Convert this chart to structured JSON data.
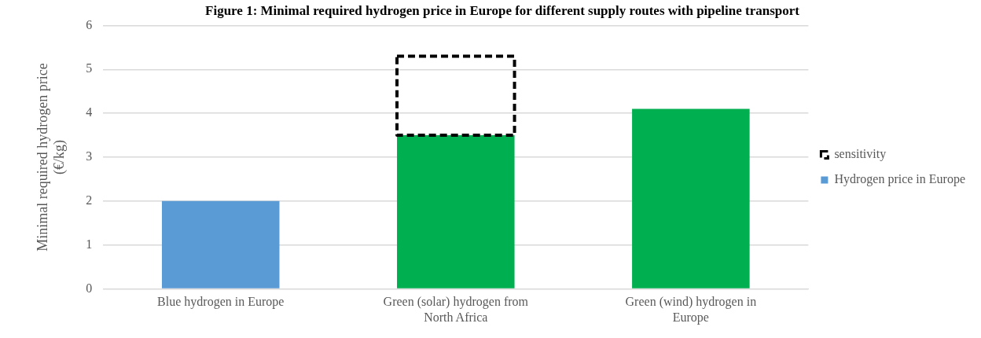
{
  "chart_data": {
    "type": "bar",
    "title": "Figure 1: Minimal required hydrogen price in Europe for different supply routes with pipeline transport",
    "ylabel": "Minimal required hydrogen price (€/kg)",
    "categories": [
      "Blue hydrogen in Europe",
      "Green (solar) hydrogen from North Africa",
      "Green (wind) hydrogen in Europe"
    ],
    "series": [
      {
        "name": "Hydrogen price in Europe",
        "color": "#5b9bd5",
        "colors": [
          "#5b9bd5",
          "#00b050",
          "#00b050"
        ],
        "values": [
          2.0,
          3.5,
          4.1
        ]
      },
      {
        "name": "sensitivity",
        "color": "#000000",
        "line_style": "dashed",
        "values": [
          null,
          1.8,
          null
        ]
      }
    ],
    "stacked": true,
    "ylim": [
      0,
      6
    ],
    "yticks": [
      0,
      1,
      2,
      3,
      4,
      5,
      6
    ],
    "grid": "y",
    "legend": "right"
  }
}
